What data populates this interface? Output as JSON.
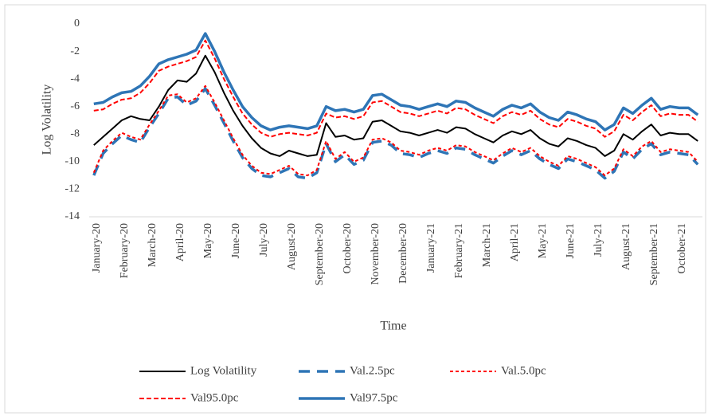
{
  "chart_data": {
    "type": "line",
    "x_label": "Time",
    "y_label": "Log Volatility",
    "categories": [
      "January-20",
      null,
      null,
      "February-20",
      null,
      null,
      "March-20",
      null,
      null,
      "April-20",
      null,
      null,
      "May-20",
      null,
      null,
      "June-20",
      null,
      null,
      "July-20",
      null,
      null,
      "August-20",
      null,
      null,
      "September-20",
      null,
      null,
      "October-20",
      null,
      null,
      "November-20",
      null,
      null,
      "December-20",
      null,
      null,
      "January-21",
      null,
      null,
      "February-21",
      null,
      null,
      "March-21",
      null,
      null,
      "April-21",
      null,
      null,
      "May-21",
      null,
      null,
      "June-21",
      null,
      null,
      "July-21",
      null,
      null,
      "August-21",
      null,
      null,
      "September-21",
      null,
      null,
      "October-21",
      null,
      null
    ],
    "ylim": [
      -14,
      0
    ],
    "yticks": [
      0,
      -2,
      -4,
      -6,
      -8,
      -10,
      -12,
      -14
    ],
    "grid": false,
    "series": [
      {
        "name": "Log Volatility",
        "color": "#000000",
        "width": 2,
        "dash": "none",
        "values": [
          -8.8,
          -8.2,
          -7.6,
          -7.0,
          -6.7,
          -6.9,
          -7.0,
          -6.0,
          -4.8,
          -4.1,
          -4.2,
          -3.6,
          -2.3,
          -3.5,
          -5.0,
          -6.3,
          -7.4,
          -8.3,
          -9.0,
          -9.4,
          -9.6,
          -9.2,
          -9.4,
          -9.6,
          -9.5,
          -7.2,
          -8.2,
          -8.1,
          -8.4,
          -8.3,
          -7.1,
          -7.0,
          -7.4,
          -7.8,
          -7.9,
          -8.1,
          -7.9,
          -7.7,
          -7.9,
          -7.5,
          -7.6,
          -8.0,
          -8.3,
          -8.6,
          -8.1,
          -7.8,
          -8.0,
          -7.7,
          -8.3,
          -8.7,
          -8.9,
          -8.3,
          -8.5,
          -8.8,
          -9.0,
          -9.6,
          -9.2,
          -8.0,
          -8.4,
          -7.8,
          -7.3,
          -8.1,
          -7.9,
          -8.0,
          -8.0,
          -8.5
        ]
      },
      {
        "name": "Val.2.5pc",
        "color": "#2e75b6",
        "width": 3.5,
        "dash": "14,9",
        "values": [
          -11.0,
          -9.4,
          -8.7,
          -8.1,
          -8.4,
          -8.6,
          -7.5,
          -6.5,
          -5.4,
          -5.3,
          -5.9,
          -5.6,
          -4.7,
          -5.9,
          -7.2,
          -8.5,
          -9.7,
          -10.5,
          -11.0,
          -11.1,
          -10.8,
          -10.5,
          -11.1,
          -11.2,
          -10.8,
          -8.7,
          -10.0,
          -9.5,
          -10.2,
          -9.9,
          -8.6,
          -8.5,
          -8.8,
          -9.4,
          -9.5,
          -9.7,
          -9.4,
          -9.2,
          -9.4,
          -9.0,
          -9.1,
          -9.5,
          -9.8,
          -10.1,
          -9.6,
          -9.2,
          -9.5,
          -9.2,
          -9.8,
          -10.2,
          -10.5,
          -9.8,
          -10.0,
          -10.3,
          -10.6,
          -11.2,
          -10.7,
          -9.3,
          -9.8,
          -9.1,
          -8.7,
          -9.5,
          -9.3,
          -9.4,
          -9.5,
          -10.2
        ]
      },
      {
        "name": "Val.5.0pc",
        "color": "#ff0000",
        "width": 2,
        "dash": "4,3",
        "values": [
          -10.8,
          -9.2,
          -8.5,
          -7.9,
          -8.2,
          -8.4,
          -7.3,
          -6.3,
          -5.2,
          -5.1,
          -5.7,
          -5.4,
          -4.5,
          -5.7,
          -7.0,
          -8.3,
          -9.5,
          -10.3,
          -10.8,
          -10.9,
          -10.6,
          -10.3,
          -10.9,
          -11.0,
          -10.6,
          -8.5,
          -9.8,
          -9.3,
          -10.0,
          -9.7,
          -8.4,
          -8.3,
          -8.6,
          -9.2,
          -9.3,
          -9.5,
          -9.2,
          -9.0,
          -9.2,
          -8.8,
          -8.9,
          -9.3,
          -9.6,
          -9.9,
          -9.4,
          -9.0,
          -9.3,
          -9.0,
          -9.6,
          -10.0,
          -10.3,
          -9.6,
          -9.8,
          -10.1,
          -10.4,
          -11.0,
          -10.5,
          -9.1,
          -9.6,
          -8.9,
          -8.5,
          -9.3,
          -9.1,
          -9.2,
          -9.3,
          -10.0
        ]
      },
      {
        "name": "Val95.0pc",
        "color": "#ff0000",
        "width": 2,
        "dash": "6,3",
        "values": [
          -6.3,
          -6.2,
          -5.8,
          -5.5,
          -5.4,
          -5.0,
          -4.3,
          -3.4,
          -3.1,
          -2.9,
          -2.7,
          -2.4,
          -1.2,
          -2.5,
          -4.0,
          -5.3,
          -6.5,
          -7.3,
          -7.9,
          -8.2,
          -8.0,
          -7.9,
          -8.0,
          -8.1,
          -7.9,
          -6.5,
          -6.8,
          -6.7,
          -6.9,
          -6.7,
          -5.7,
          -5.6,
          -6.0,
          -6.4,
          -6.5,
          -6.7,
          -6.5,
          -6.3,
          -6.5,
          -6.1,
          -6.2,
          -6.6,
          -6.9,
          -7.2,
          -6.7,
          -6.4,
          -6.6,
          -6.3,
          -6.9,
          -7.3,
          -7.5,
          -6.9,
          -7.1,
          -7.4,
          -7.6,
          -8.2,
          -7.8,
          -6.6,
          -7.0,
          -6.4,
          -5.9,
          -6.7,
          -6.5,
          -6.6,
          -6.6,
          -7.1
        ]
      },
      {
        "name": "Val97.5pc",
        "color": "#2e75b6",
        "width": 3.5,
        "dash": "none",
        "values": [
          -5.8,
          -5.7,
          -5.3,
          -5.0,
          -4.9,
          -4.5,
          -3.8,
          -2.9,
          -2.6,
          -2.4,
          -2.2,
          -1.9,
          -0.7,
          -2.0,
          -3.5,
          -4.8,
          -6.0,
          -6.8,
          -7.4,
          -7.7,
          -7.5,
          -7.4,
          -7.5,
          -7.6,
          -7.4,
          -6.0,
          -6.3,
          -6.2,
          -6.4,
          -6.2,
          -5.2,
          -5.1,
          -5.5,
          -5.9,
          -6.0,
          -6.2,
          -6.0,
          -5.8,
          -6.0,
          -5.6,
          -5.7,
          -6.1,
          -6.4,
          -6.7,
          -6.2,
          -5.9,
          -6.1,
          -5.8,
          -6.4,
          -6.8,
          -7.0,
          -6.4,
          -6.6,
          -6.9,
          -7.1,
          -7.7,
          -7.3,
          -6.1,
          -6.5,
          -5.9,
          -5.4,
          -6.2,
          -6.0,
          -6.1,
          -6.1,
          -6.6
        ]
      }
    ]
  }
}
